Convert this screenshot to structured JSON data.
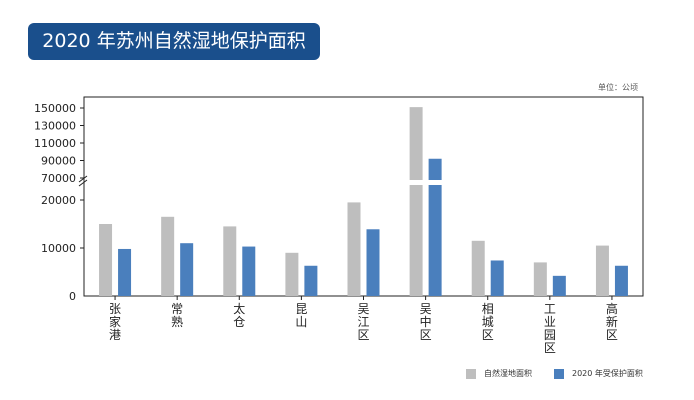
{
  "title": "2020 年苏州自然湿地保护面积",
  "unit": "单位：公顷",
  "colors": {
    "natural": "#bebebe",
    "protected": "#4a7fbd",
    "banner": "#1a4f8c"
  },
  "chart_data": {
    "type": "bar",
    "categories": [
      "张家港",
      "常熟",
      "太仓",
      "昆山",
      "吴江区",
      "吴中区",
      "相城区",
      "工业园区",
      "高新区"
    ],
    "series": [
      {
        "name": "自然湿地面积",
        "values": [
          15000,
          16500,
          14500,
          9000,
          19500,
          151000,
          11500,
          7000,
          10500
        ]
      },
      {
        "name": "2020 年受保护面积",
        "values": [
          9800,
          11000,
          10300,
          6300,
          13900,
          92000,
          7400,
          4200,
          6300
        ]
      }
    ],
    "yticks": [
      "0",
      "10000",
      "20000",
      "70000",
      "90000",
      "110000",
      "130000",
      "150000"
    ],
    "y_axis_break": [
      20000,
      70000
    ],
    "legend_position": "bottom-right"
  }
}
